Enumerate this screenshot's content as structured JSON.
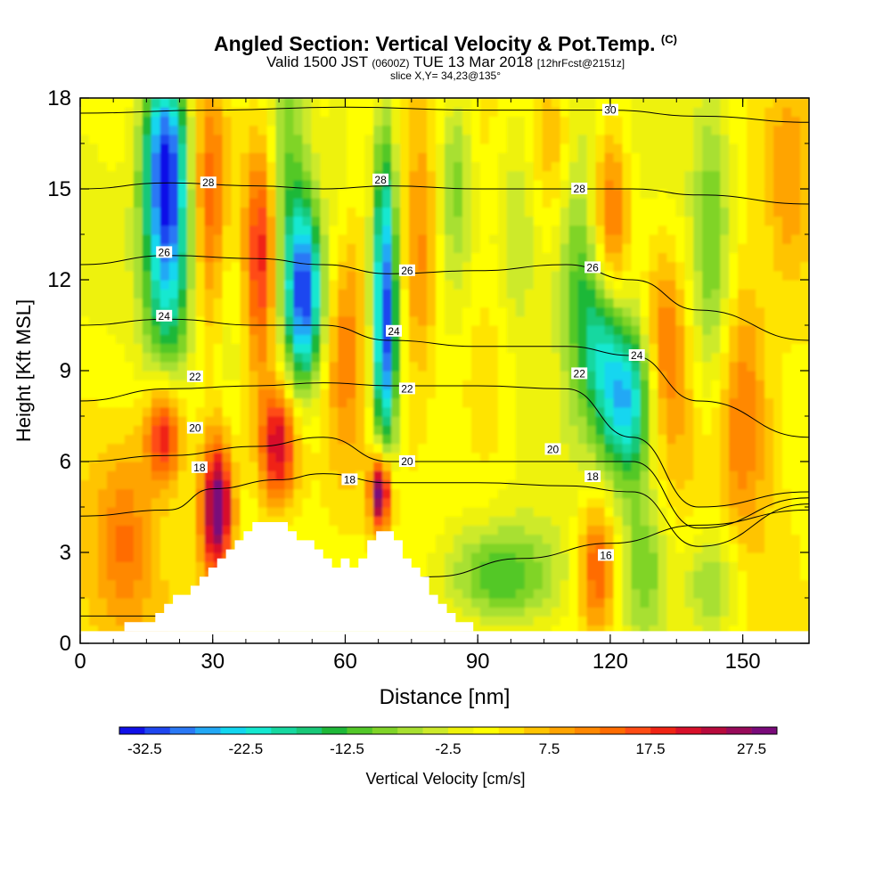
{
  "figure": {
    "title_main": "Angled Section: Vertical Velocity & Pot.Temp.",
    "title_unit": "(C)",
    "subtitle_pre": "Valid 1500 JST",
    "subtitle_z": "(0600Z)",
    "subtitle_date": "TUE 13 Mar 2018",
    "subtitle_fcst": "[12hrFcst@2151z]",
    "slice_label": "slice X,Y= 34,23@135°"
  },
  "chart_data": {
    "type": "heatmap",
    "xlabel": "Distance [nm]",
    "ylabel": "Height [Kft MSL]",
    "xlim": [
      0,
      165
    ],
    "ylim": [
      0,
      18
    ],
    "x_ticks": [
      "0",
      "30",
      "60",
      "90",
      "120",
      "150"
    ],
    "y_ticks": [
      "0",
      "3",
      "6",
      "9",
      "12",
      "15",
      "18"
    ],
    "colorbar": {
      "label": "Vertical Velocity [cm/s]",
      "tick_labels": [
        "-32.5",
        "-22.5",
        "-12.5",
        "-2.5",
        "7.5",
        "17.5",
        "27.5"
      ],
      "levels_min": -35,
      "levels_step": 2.5,
      "colors": [
        "#1010e8",
        "#1e46f0",
        "#2a78f5",
        "#22a8f5",
        "#12d6f0",
        "#14e8d0",
        "#16d8a0",
        "#18c878",
        "#1eb838",
        "#52c828",
        "#80d428",
        "#a8e030",
        "#cdea2a",
        "#eef20a",
        "#ffff00",
        "#ffe400",
        "#ffc400",
        "#ffa400",
        "#ff8800",
        "#ff6c00",
        "#ff4c14",
        "#f02414",
        "#d8102a",
        "#b80a3c",
        "#980a5a",
        "#7a0a7a"
      ]
    },
    "terrain": [
      [
        10,
        0.7
      ],
      [
        17,
        0.7
      ],
      [
        17,
        1.0
      ],
      [
        19,
        1.0
      ],
      [
        19,
        1.3
      ],
      [
        21,
        1.3
      ],
      [
        21,
        1.6
      ],
      [
        25,
        1.6
      ],
      [
        25,
        1.9
      ],
      [
        27,
        1.9
      ],
      [
        27,
        2.2
      ],
      [
        29,
        2.2
      ],
      [
        29,
        2.5
      ],
      [
        31,
        2.5
      ],
      [
        31,
        2.8
      ],
      [
        33,
        2.8
      ],
      [
        33,
        3.1
      ],
      [
        35,
        3.1
      ],
      [
        35,
        3.4
      ],
      [
        37,
        3.4
      ],
      [
        37,
        3.7
      ],
      [
        39,
        3.7
      ],
      [
        39,
        4.0
      ],
      [
        47,
        4.0
      ],
      [
        47,
        3.7
      ],
      [
        49,
        3.7
      ],
      [
        49,
        3.4
      ],
      [
        53,
        3.4
      ],
      [
        53,
        3.1
      ],
      [
        55,
        3.1
      ],
      [
        55,
        2.8
      ],
      [
        57,
        2.8
      ],
      [
        57,
        2.5
      ],
      [
        59,
        2.5
      ],
      [
        59,
        2.8
      ],
      [
        61,
        2.8
      ],
      [
        61,
        2.5
      ],
      [
        63,
        2.5
      ],
      [
        63,
        2.8
      ],
      [
        65,
        2.8
      ],
      [
        65,
        3.4
      ],
      [
        67,
        3.4
      ],
      [
        67,
        3.7
      ],
      [
        71,
        3.7
      ],
      [
        71,
        3.4
      ],
      [
        73,
        3.4
      ],
      [
        73,
        2.8
      ],
      [
        75,
        2.8
      ],
      [
        75,
        2.5
      ],
      [
        77,
        2.5
      ],
      [
        77,
        2.2
      ],
      [
        79,
        2.2
      ],
      [
        79,
        1.6
      ],
      [
        81,
        1.6
      ],
      [
        81,
        1.3
      ],
      [
        83,
        1.3
      ],
      [
        83,
        1.0
      ],
      [
        85,
        1.0
      ],
      [
        85,
        0.7
      ],
      [
        89,
        0.7
      ],
      [
        89,
        0.4
      ],
      [
        10,
        0.4
      ]
    ],
    "features": [
      {
        "x": 20,
        "y": 13.5,
        "w": -28,
        "sx": 4.0,
        "sy": 3.2
      },
      {
        "x": 19,
        "y": 16.5,
        "w": -18,
        "sx": 3.5,
        "sy": 2.0
      },
      {
        "x": 47,
        "y": 14,
        "w": -12,
        "sx": 3.0,
        "sy": 4.5
      },
      {
        "x": 51,
        "y": 11.5,
        "w": -33,
        "sx": 3.0,
        "sy": 2.2
      },
      {
        "x": 69,
        "y": 12.5,
        "w": -24,
        "sx": 2.0,
        "sy": 3.5
      },
      {
        "x": 69,
        "y": 9.0,
        "w": -16,
        "sx": 2.0,
        "sy": 2.5
      },
      {
        "x": 85,
        "y": 15.5,
        "w": -12,
        "sx": 3.0,
        "sy": 2.5
      },
      {
        "x": 99,
        "y": 14.0,
        "w": -8,
        "sx": 4.0,
        "sy": 3.0
      },
      {
        "x": 112,
        "y": 13.0,
        "w": -11,
        "sx": 3.5,
        "sy": 4.0
      },
      {
        "x": 124,
        "y": 8.0,
        "w": -28,
        "sx": 5.0,
        "sy": 2.0
      },
      {
        "x": 118,
        "y": 10.5,
        "w": -18,
        "sx": 3.5,
        "sy": 2.0
      },
      {
        "x": 143,
        "y": 13.0,
        "w": -10,
        "sx": 3.0,
        "sy": 4.0
      },
      {
        "x": 95,
        "y": 2.2,
        "w": -14,
        "sx": 9.0,
        "sy": 1.2
      },
      {
        "x": 128,
        "y": 2.5,
        "w": -12,
        "sx": 4.0,
        "sy": 2.0
      },
      {
        "x": 143,
        "y": 2.0,
        "w": -12,
        "sx": 5.0,
        "sy": 1.5
      },
      {
        "x": 34,
        "y": 11.0,
        "w": -6,
        "sx": 2.5,
        "sy": 3.0
      },
      {
        "x": 59,
        "y": 14.0,
        "w": -5,
        "sx": 2.5,
        "sy": 3.0
      },
      {
        "x": 31,
        "y": 4.5,
        "w": 30,
        "sx": 2.5,
        "sy": 1.6
      },
      {
        "x": 19,
        "y": 7.0,
        "w": 20,
        "sx": 3.0,
        "sy": 1.2
      },
      {
        "x": 45,
        "y": 6.5,
        "w": 22,
        "sx": 3.0,
        "sy": 1.4
      },
      {
        "x": 68,
        "y": 5.0,
        "w": 32,
        "sx": 1.6,
        "sy": 0.9
      },
      {
        "x": 41,
        "y": 13.0,
        "w": 15,
        "sx": 2.5,
        "sy": 2.5
      },
      {
        "x": 29,
        "y": 15.0,
        "w": 12,
        "sx": 3.0,
        "sy": 3.0
      },
      {
        "x": 60,
        "y": 10.5,
        "w": 10,
        "sx": 3.0,
        "sy": 3.0
      },
      {
        "x": 77,
        "y": 12.5,
        "w": 10,
        "sx": 3.0,
        "sy": 3.0
      },
      {
        "x": 120,
        "y": 13.5,
        "w": 16,
        "sx": 3.0,
        "sy": 2.5
      },
      {
        "x": 132,
        "y": 9.5,
        "w": 14,
        "sx": 3.5,
        "sy": 2.5
      },
      {
        "x": 117,
        "y": 2.5,
        "w": 15,
        "sx": 3.0,
        "sy": 1.5
      },
      {
        "x": 150,
        "y": 8.0,
        "w": 10,
        "sx": 4.0,
        "sy": 3.0
      },
      {
        "x": 92,
        "y": 8.5,
        "w": 6,
        "sx": 5.0,
        "sy": 2.5
      },
      {
        "x": 10,
        "y": 3.5,
        "w": 8,
        "sx": 4.0,
        "sy": 2.0
      },
      {
        "x": 108,
        "y": 16.5,
        "w": 8,
        "sx": 4.0,
        "sy": 2.0
      },
      {
        "x": 160,
        "y": 15.5,
        "w": 6,
        "sx": 3.0,
        "sy": 2.5
      }
    ],
    "isotherms": [
      {
        "label": "16",
        "pts": [
          [
            0,
            0.9
          ],
          [
            40,
            0.9
          ],
          [
            60,
            1.5
          ],
          [
            80,
            2.2
          ],
          [
            100,
            2.8
          ],
          [
            120,
            3.3
          ],
          [
            140,
            3.9
          ],
          [
            165,
            4.4
          ]
        ]
      },
      {
        "label": "18",
        "pts": [
          [
            0,
            4.2
          ],
          [
            20,
            4.4
          ],
          [
            30,
            5.1
          ],
          [
            45,
            5.4
          ],
          [
            55,
            5.6
          ],
          [
            70,
            5.3
          ],
          [
            90,
            5.3
          ],
          [
            110,
            5.2
          ],
          [
            125,
            5.0
          ],
          [
            140,
            3.2
          ],
          [
            165,
            4.6
          ]
        ]
      },
      {
        "label": "20",
        "pts": [
          [
            0,
            6.0
          ],
          [
            20,
            6.2
          ],
          [
            40,
            6.5
          ],
          [
            55,
            6.8
          ],
          [
            70,
            6.0
          ],
          [
            90,
            6.0
          ],
          [
            110,
            6.0
          ],
          [
            125,
            6.0
          ],
          [
            140,
            3.8
          ],
          [
            165,
            4.8
          ]
        ]
      },
      {
        "label": "22",
        "pts": [
          [
            0,
            8.0
          ],
          [
            20,
            8.4
          ],
          [
            40,
            8.5
          ],
          [
            55,
            8.6
          ],
          [
            70,
            8.5
          ],
          [
            90,
            8.5
          ],
          [
            110,
            8.4
          ],
          [
            125,
            6.8
          ],
          [
            140,
            4.5
          ],
          [
            165,
            5.0
          ]
        ]
      },
      {
        "label": "24",
        "pts": [
          [
            0,
            10.5
          ],
          [
            20,
            10.7
          ],
          [
            40,
            10.5
          ],
          [
            55,
            10.5
          ],
          [
            70,
            10.0
          ],
          [
            90,
            9.8
          ],
          [
            110,
            9.8
          ],
          [
            125,
            9.5
          ],
          [
            140,
            8.0
          ],
          [
            165,
            6.8
          ]
        ]
      },
      {
        "label": "26",
        "pts": [
          [
            0,
            12.5
          ],
          [
            20,
            12.8
          ],
          [
            40,
            12.7
          ],
          [
            55,
            12.5
          ],
          [
            70,
            12.2
          ],
          [
            90,
            12.3
          ],
          [
            110,
            12.5
          ],
          [
            125,
            12.0
          ],
          [
            140,
            11.0
          ],
          [
            165,
            10.0
          ]
        ]
      },
      {
        "label": "28",
        "pts": [
          [
            0,
            15.0
          ],
          [
            20,
            15.2
          ],
          [
            40,
            15.1
          ],
          [
            55,
            15.0
          ],
          [
            70,
            15.1
          ],
          [
            90,
            15.0
          ],
          [
            110,
            15.0
          ],
          [
            125,
            15.0
          ],
          [
            140,
            14.8
          ],
          [
            165,
            14.5
          ]
        ]
      },
      {
        "label": "30",
        "pts": [
          [
            0,
            17.5
          ],
          [
            30,
            17.6
          ],
          [
            60,
            17.7
          ],
          [
            90,
            17.6
          ],
          [
            110,
            17.6
          ],
          [
            120,
            17.6
          ],
          [
            140,
            17.4
          ],
          [
            165,
            17.2
          ]
        ]
      }
    ],
    "isotherm_labels": [
      {
        "text": "28",
        "x": 29,
        "y": 15.2
      },
      {
        "text": "28",
        "x": 68,
        "y": 15.3
      },
      {
        "text": "28",
        "x": 113,
        "y": 15.0
      },
      {
        "text": "30",
        "x": 120,
        "y": 17.6
      },
      {
        "text": "26",
        "x": 19,
        "y": 12.9
      },
      {
        "text": "26",
        "x": 74,
        "y": 12.3
      },
      {
        "text": "26",
        "x": 116,
        "y": 12.4
      },
      {
        "text": "24",
        "x": 19,
        "y": 10.8
      },
      {
        "text": "24",
        "x": 71,
        "y": 10.3
      },
      {
        "text": "24",
        "x": 126,
        "y": 9.5
      },
      {
        "text": "22",
        "x": 26,
        "y": 8.8
      },
      {
        "text": "22",
        "x": 74,
        "y": 8.4
      },
      {
        "text": "22",
        "x": 113,
        "y": 8.9
      },
      {
        "text": "20",
        "x": 26,
        "y": 7.1
      },
      {
        "text": "20",
        "x": 74,
        "y": 6.0
      },
      {
        "text": "20",
        "x": 107,
        "y": 6.4
      },
      {
        "text": "18",
        "x": 27,
        "y": 5.8
      },
      {
        "text": "18",
        "x": 61,
        "y": 5.4
      },
      {
        "text": "18",
        "x": 116,
        "y": 5.5
      },
      {
        "text": "16",
        "x": 119,
        "y": 2.9
      }
    ]
  }
}
